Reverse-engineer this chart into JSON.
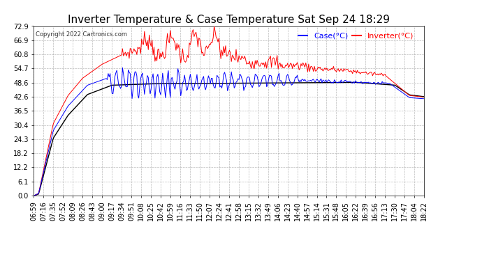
{
  "title": "Inverter Temperature & Case Temperature Sat Sep 24 18:29",
  "copyright": "Copyright 2022 Cartronics.com",
  "legend_case": "Case(°C)",
  "legend_inverter": "Inverter(°C)",
  "yticks": [
    0.0,
    6.1,
    12.2,
    18.2,
    24.3,
    30.4,
    36.5,
    42.6,
    48.6,
    54.7,
    60.8,
    66.9,
    72.9
  ],
  "ylim": [
    0.0,
    72.9
  ],
  "xtick_labels": [
    "06:59",
    "07:16",
    "07:35",
    "07:52",
    "08:09",
    "08:26",
    "08:43",
    "09:00",
    "09:17",
    "09:34",
    "09:51",
    "10:08",
    "10:25",
    "10:42",
    "10:59",
    "11:16",
    "11:33",
    "11:50",
    "12:07",
    "12:24",
    "12:41",
    "12:58",
    "13:15",
    "13:32",
    "13:49",
    "14:06",
    "14:23",
    "14:40",
    "14:57",
    "15:14",
    "15:31",
    "15:48",
    "16:05",
    "16:22",
    "16:39",
    "16:56",
    "17:13",
    "17:30",
    "17:47",
    "18:04",
    "18:22"
  ],
  "bg_color": "#ffffff",
  "grid_color": "#aaaaaa",
  "case_color": "#0000ff",
  "inverter_color": "#ff0000",
  "black_color": "#000000",
  "title_fontsize": 11,
  "tick_fontsize": 7,
  "legend_fontsize": 8
}
